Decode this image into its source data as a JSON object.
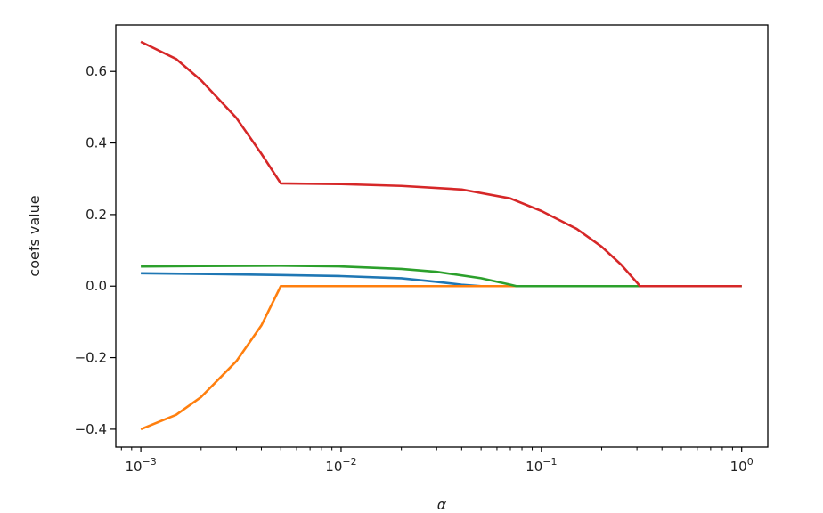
{
  "chart_data": {
    "type": "line",
    "xlabel": "α",
    "ylabel": "coefs value",
    "xscale": "log",
    "xlim": [
      0.00075,
      1.35
    ],
    "ylim": [
      -0.45,
      0.73
    ],
    "grid": false,
    "x_ticks": [
      {
        "value": 0.001,
        "base": "10",
        "exp": "−3"
      },
      {
        "value": 0.01,
        "base": "10",
        "exp": "−2"
      },
      {
        "value": 0.1,
        "base": "10",
        "exp": "−1"
      },
      {
        "value": 1,
        "base": "10",
        "exp": "0"
      }
    ],
    "y_ticks": [
      {
        "value": -0.4,
        "label": "−0.4"
      },
      {
        "value": -0.2,
        "label": "−0.2"
      },
      {
        "value": 0.0,
        "label": "0.0"
      },
      {
        "value": 0.2,
        "label": "0.2"
      },
      {
        "value": 0.4,
        "label": "0.4"
      },
      {
        "value": 0.6,
        "label": "0.6"
      }
    ],
    "series": [
      {
        "color": "#1f77b4",
        "points": [
          [
            0.001,
            0.036
          ],
          [
            0.002,
            0.034
          ],
          [
            0.005,
            0.031
          ],
          [
            0.01,
            0.028
          ],
          [
            0.02,
            0.022
          ],
          [
            0.03,
            0.012
          ],
          [
            0.04,
            0.004
          ],
          [
            0.05,
            0.0
          ],
          [
            0.1,
            0.0
          ],
          [
            0.3,
            0.0
          ],
          [
            1,
            0.0
          ]
        ]
      },
      {
        "color": "#ff7f0e",
        "points": [
          [
            0.001,
            -0.4
          ],
          [
            0.0015,
            -0.36
          ],
          [
            0.002,
            -0.31
          ],
          [
            0.003,
            -0.21
          ],
          [
            0.004,
            -0.11
          ],
          [
            0.005,
            0.0
          ],
          [
            0.01,
            0.0
          ],
          [
            0.1,
            0.0
          ],
          [
            1,
            0.0
          ]
        ]
      },
      {
        "color": "#2ca02c",
        "points": [
          [
            0.001,
            0.055
          ],
          [
            0.002,
            0.056
          ],
          [
            0.005,
            0.057
          ],
          [
            0.01,
            0.055
          ],
          [
            0.02,
            0.048
          ],
          [
            0.03,
            0.04
          ],
          [
            0.05,
            0.022
          ],
          [
            0.07,
            0.004
          ],
          [
            0.075,
            0.0
          ],
          [
            0.1,
            0.0
          ],
          [
            0.3,
            0.0
          ],
          [
            1,
            0.0
          ]
        ]
      },
      {
        "color": "#d62728",
        "points": [
          [
            0.001,
            0.683
          ],
          [
            0.0015,
            0.635
          ],
          [
            0.002,
            0.575
          ],
          [
            0.003,
            0.47
          ],
          [
            0.004,
            0.37
          ],
          [
            0.005,
            0.287
          ],
          [
            0.01,
            0.285
          ],
          [
            0.02,
            0.28
          ],
          [
            0.04,
            0.27
          ],
          [
            0.07,
            0.245
          ],
          [
            0.1,
            0.21
          ],
          [
            0.15,
            0.16
          ],
          [
            0.2,
            0.11
          ],
          [
            0.25,
            0.06
          ],
          [
            0.3,
            0.01
          ],
          [
            0.31,
            0.0
          ],
          [
            0.5,
            0.0
          ],
          [
            1,
            0.0
          ]
        ]
      }
    ]
  }
}
